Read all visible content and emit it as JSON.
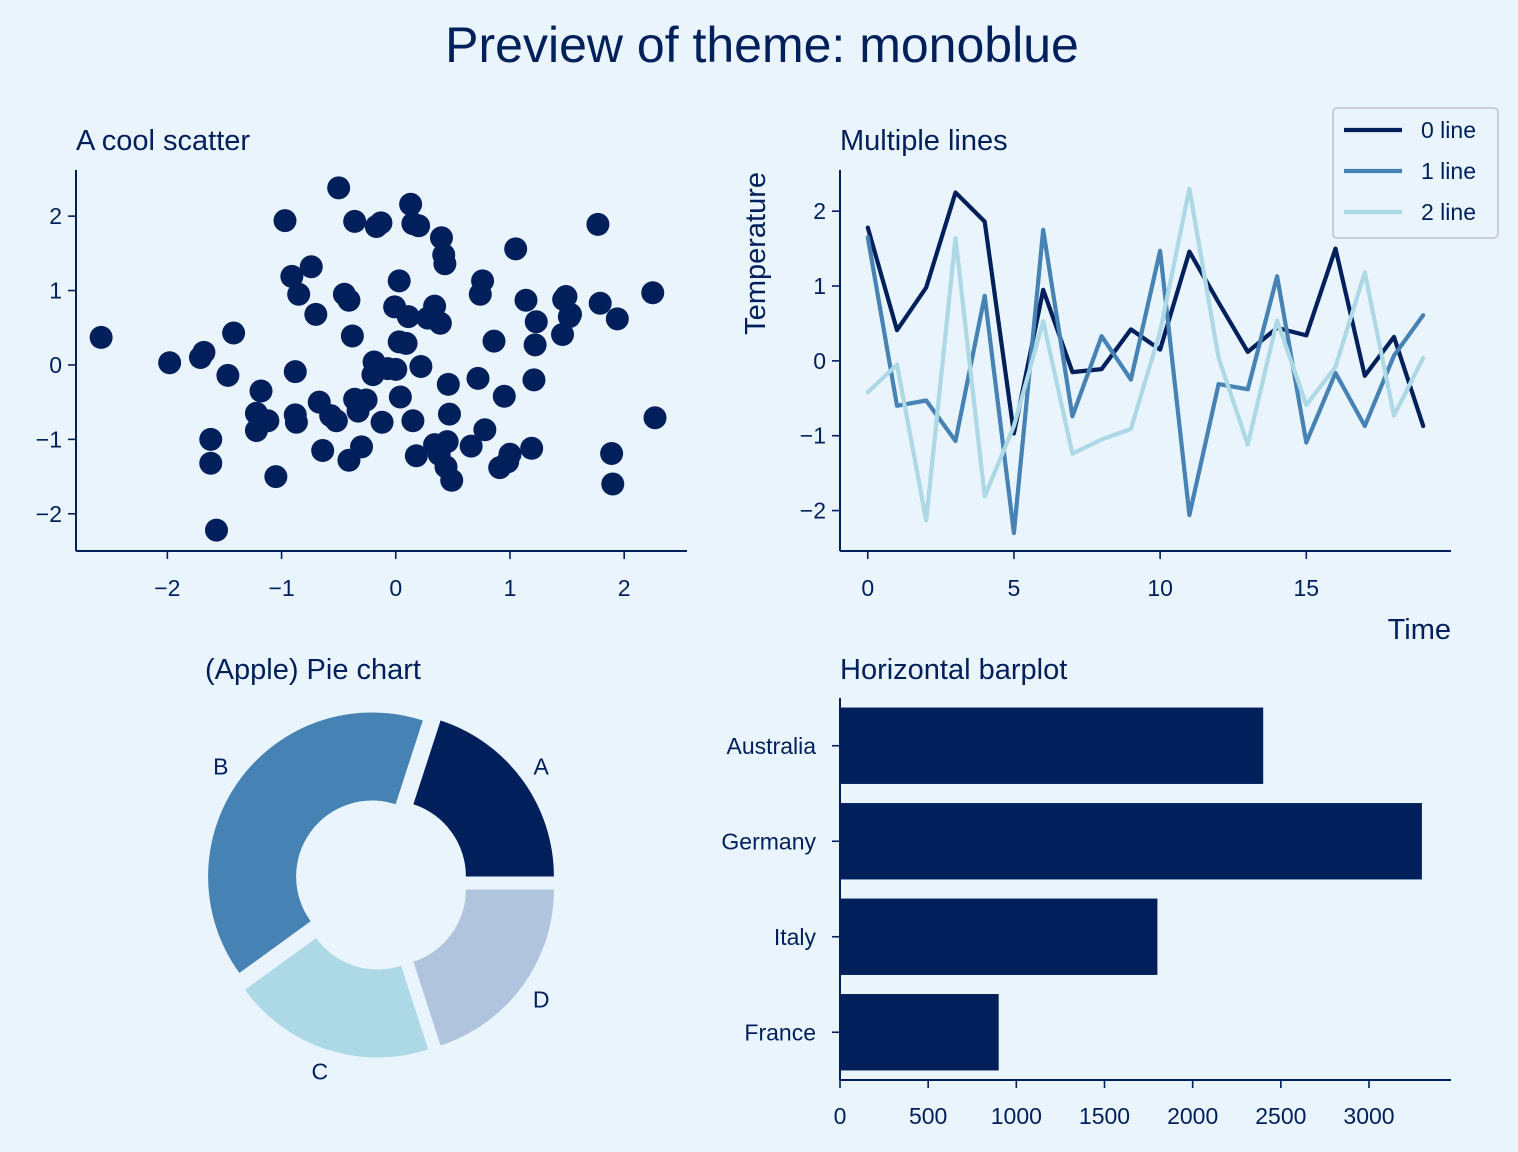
{
  "title": "Preview of theme: monoblue",
  "colors": {
    "background": "#EAF4FD",
    "ink": "#001F5B",
    "palette": [
      "#001F5B",
      "#4682B4",
      "#ADD8E6",
      "#B0C4DE"
    ]
  },
  "chart_data": [
    {
      "type": "scatter",
      "title": "A cool scatter",
      "xlim": [
        -2.8,
        2.55
      ],
      "ylim": [
        -2.5,
        2.62
      ],
      "x_ticks": [
        -2,
        -1,
        0,
        1,
        2
      ],
      "x_tick_labels": [
        "−2",
        "−1",
        "0",
        "1",
        "2"
      ],
      "y_ticks": [
        -2,
        -1,
        0,
        1,
        2
      ],
      "y_tick_labels": [
        "−2",
        "−1",
        "0",
        "1",
        "2"
      ],
      "points": [
        [
          -2.58,
          0.37
        ],
        [
          -1.98,
          0.03
        ],
        [
          -1.71,
          0.1
        ],
        [
          -1.68,
          0.17
        ],
        [
          -1.57,
          -2.22
        ],
        [
          -1.62,
          -1.0
        ],
        [
          -1.62,
          -1.32
        ],
        [
          -1.47,
          -0.14
        ],
        [
          -1.42,
          0.43
        ],
        [
          -1.18,
          -0.35
        ],
        [
          -1.22,
          -0.65
        ],
        [
          -1.22,
          -0.88
        ],
        [
          -1.12,
          -0.75
        ],
        [
          -1.05,
          -1.5
        ],
        [
          -0.97,
          1.94
        ],
        [
          -0.91,
          1.19
        ],
        [
          -0.88,
          -0.09
        ],
        [
          -0.88,
          -0.67
        ],
        [
          -0.87,
          -0.77
        ],
        [
          -0.85,
          0.95
        ],
        [
          -0.74,
          1.32
        ],
        [
          -0.7,
          0.68
        ],
        [
          -0.67,
          -0.5
        ],
        [
          -0.64,
          -1.15
        ],
        [
          -0.57,
          -0.68
        ],
        [
          -0.52,
          -0.75
        ],
        [
          -0.5,
          2.38
        ],
        [
          -0.45,
          0.95
        ],
        [
          -0.41,
          0.87
        ],
        [
          -0.41,
          -1.28
        ],
        [
          -0.38,
          0.39
        ],
        [
          -0.36,
          -0.46
        ],
        [
          -0.36,
          1.93
        ],
        [
          -0.33,
          -0.62
        ],
        [
          -0.3,
          -1.1
        ],
        [
          -0.26,
          -0.47
        ],
        [
          -0.2,
          -0.13
        ],
        [
          -0.19,
          0.04
        ],
        [
          -0.17,
          1.86
        ],
        [
          -0.12,
          -0.77
        ],
        [
          -0.13,
          1.91
        ],
        [
          -0.07,
          -0.05
        ],
        [
          -0.01,
          0.78
        ],
        [
          0.0,
          -0.06
        ],
        [
          0.03,
          1.13
        ],
        [
          0.04,
          -0.43
        ],
        [
          0.03,
          0.31
        ],
        [
          0.09,
          0.29
        ],
        [
          0.11,
          0.65
        ],
        [
          0.13,
          2.16
        ],
        [
          0.15,
          -0.75
        ],
        [
          0.15,
          1.9
        ],
        [
          0.18,
          -1.22
        ],
        [
          0.2,
          1.87
        ],
        [
          0.22,
          -0.02
        ],
        [
          0.28,
          0.63
        ],
        [
          0.34,
          -1.07
        ],
        [
          0.34,
          0.79
        ],
        [
          0.38,
          -1.2
        ],
        [
          0.39,
          0.56
        ],
        [
          0.4,
          1.71
        ],
        [
          0.42,
          1.48
        ],
        [
          0.43,
          1.36
        ],
        [
          0.44,
          -1.37
        ],
        [
          0.45,
          -1.03
        ],
        [
          0.46,
          -0.26
        ],
        [
          0.47,
          -0.66
        ],
        [
          0.49,
          -1.55
        ],
        [
          0.66,
          -1.09
        ],
        [
          0.72,
          -0.18
        ],
        [
          0.74,
          0.95
        ],
        [
          0.76,
          1.13
        ],
        [
          0.78,
          -0.87
        ],
        [
          0.86,
          0.32
        ],
        [
          0.91,
          -1.38
        ],
        [
          0.95,
          -0.42
        ],
        [
          0.98,
          -1.3
        ],
        [
          1.0,
          -1.2
        ],
        [
          1.05,
          1.56
        ],
        [
          1.14,
          0.87
        ],
        [
          1.19,
          -1.12
        ],
        [
          1.21,
          -0.2
        ],
        [
          1.22,
          0.27
        ],
        [
          1.23,
          0.58
        ],
        [
          1.46,
          0.41
        ],
        [
          1.47,
          0.88
        ],
        [
          1.49,
          0.92
        ],
        [
          1.52,
          0.65
        ],
        [
          1.53,
          0.68
        ],
        [
          1.77,
          1.89
        ],
        [
          1.79,
          0.83
        ],
        [
          1.89,
          -1.19
        ],
        [
          1.9,
          -1.6
        ],
        [
          1.94,
          0.62
        ],
        [
          2.25,
          0.97
        ],
        [
          2.27,
          -0.71
        ]
      ]
    },
    {
      "type": "line",
      "title": "Multiple lines",
      "xlabel": "Time",
      "ylabel": "Temperature",
      "xlim": [
        -0.95,
        19.95
      ],
      "ylim": [
        -2.54,
        2.55
      ],
      "x_ticks": [
        0,
        5,
        10,
        15
      ],
      "x_tick_labels": [
        "0",
        "5",
        "10",
        "15"
      ],
      "y_ticks": [
        -2,
        -1,
        0,
        1,
        2
      ],
      "y_tick_labels": [
        "−2",
        "−1",
        "0",
        "1",
        "2"
      ],
      "legend_position": "top-right",
      "x": [
        0,
        1,
        2,
        3,
        4,
        5,
        6,
        7,
        8,
        9,
        10,
        11,
        12,
        13,
        14,
        15,
        16,
        17,
        18,
        19
      ],
      "series": [
        {
          "name": "0 line",
          "color": "#001F5B",
          "values": [
            1.78,
            0.41,
            0.98,
            2.25,
            1.86,
            -0.97,
            0.95,
            -0.15,
            -0.11,
            0.42,
            0.15,
            1.46,
            0.78,
            0.12,
            0.44,
            0.34,
            1.5,
            -0.2,
            0.32,
            -0.87
          ]
        },
        {
          "name": "1 line",
          "color": "#4682B4",
          "values": [
            1.65,
            -0.6,
            -0.53,
            -1.07,
            0.87,
            -2.3,
            1.75,
            -0.74,
            0.33,
            -0.25,
            1.47,
            -2.06,
            -0.31,
            -0.38,
            1.13,
            -1.09,
            -0.16,
            -0.87,
            0.07,
            0.61
          ]
        },
        {
          "name": "2 line",
          "color": "#ADD8E6",
          "values": [
            -0.42,
            -0.05,
            -2.13,
            1.64,
            -1.81,
            -0.87,
            0.53,
            -1.24,
            -1.05,
            -0.91,
            0.39,
            2.3,
            0.04,
            -1.12,
            0.54,
            -0.59,
            -0.08,
            1.18,
            -0.73,
            0.04
          ]
        }
      ]
    },
    {
      "type": "pie",
      "title": "(Apple) Pie chart",
      "donut": true,
      "labels": [
        "A",
        "B",
        "C",
        "D"
      ],
      "values": [
        20,
        40,
        20,
        20
      ],
      "colors": [
        "#001F5B",
        "#4682B4",
        "#ADD8E6",
        "#B0C4DE"
      ],
      "explode": [
        0.05,
        0.05,
        0.05,
        0.05
      ]
    },
    {
      "type": "bar",
      "orientation": "horizontal",
      "title": "Horizontal barplot",
      "categories": [
        "France",
        "Italy",
        "Germany",
        "Australia"
      ],
      "values": [
        900,
        1800,
        3300,
        2400
      ],
      "color": "#001F5B",
      "xlim": [
        0,
        3465
      ],
      "x_ticks": [
        0,
        500,
        1000,
        1500,
        2000,
        2500,
        3000
      ],
      "x_tick_labels": [
        "0",
        "500",
        "1000",
        "1500",
        "2000",
        "2500",
        "3000"
      ]
    }
  ]
}
